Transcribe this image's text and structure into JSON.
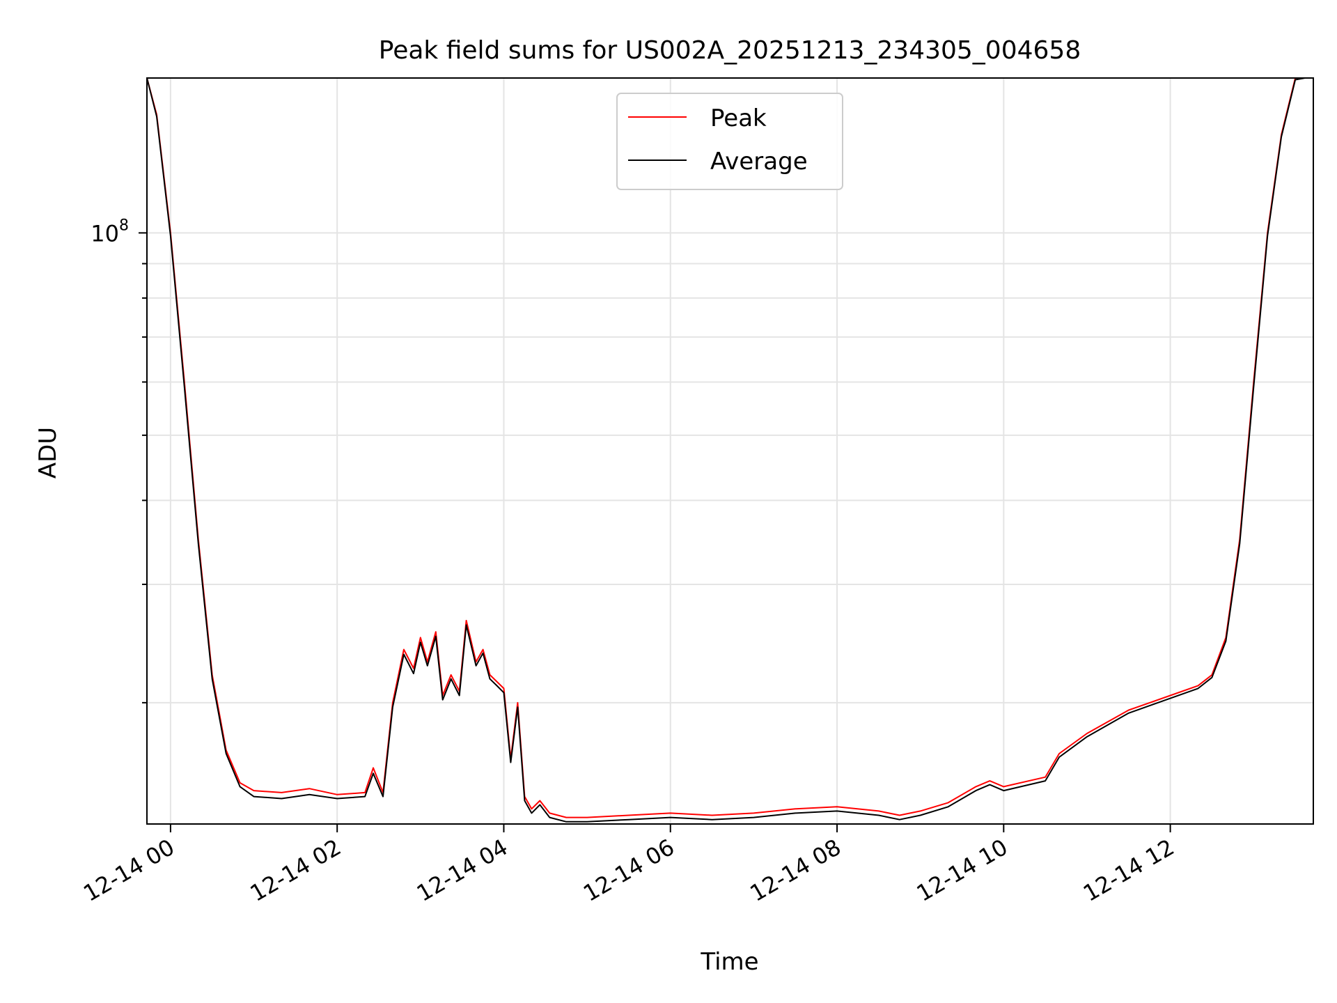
{
  "chart_data": {
    "type": "line",
    "title": "Peak field sums for US002A_20251213_234305_004658",
    "xlabel": "Time",
    "ylabel": "ADU",
    "yscale": "log",
    "y_major_tick_label": {
      "base": "10",
      "exponent": "8"
    },
    "x_tick_labels": [
      "12-14 00",
      "12-14 02",
      "12-14 04",
      "12-14 06",
      "12-14 08",
      "12-14 10",
      "12-14 12"
    ],
    "x_ticks": [
      "2025-12-14 00:00",
      "2025-12-14 02:00",
      "2025-12-14 04:00",
      "2025-12-14 06:00",
      "2025-12-14 08:00",
      "2025-12-14 10:00",
      "2025-12-14 12:00"
    ],
    "xlim": [
      "2025-12-13 23:43",
      "2025-12-14 13:43"
    ],
    "ylim": [
      13200000,
      170000000
    ],
    "grid": true,
    "legend": "upper center",
    "series": [
      {
        "name": "Peak",
        "color": "#ff0000",
        "x": [
          "2025-12-13 23:43",
          "2025-12-13 23:50",
          "2025-12-14 00:00",
          "2025-12-14 00:10",
          "2025-12-14 00:20",
          "2025-12-14 00:30",
          "2025-12-14 00:40",
          "2025-12-14 00:50",
          "2025-12-14 01:00",
          "2025-12-14 01:20",
          "2025-12-14 01:40",
          "2025-12-14 02:00",
          "2025-12-14 02:20",
          "2025-12-14 02:26",
          "2025-12-14 02:33",
          "2025-12-14 02:40",
          "2025-12-14 02:48",
          "2025-12-14 02:55",
          "2025-12-14 03:00",
          "2025-12-14 03:05",
          "2025-12-14 03:11",
          "2025-12-14 03:16",
          "2025-12-14 03:22",
          "2025-12-14 03:28",
          "2025-12-14 03:33",
          "2025-12-14 03:40",
          "2025-12-14 03:45",
          "2025-12-14 03:50",
          "2025-12-14 03:55",
          "2025-12-14 04:00",
          "2025-12-14 04:05",
          "2025-12-14 04:10",
          "2025-12-14 04:15",
          "2025-12-14 04:20",
          "2025-12-14 04:26",
          "2025-12-14 04:33",
          "2025-12-14 04:45",
          "2025-12-14 05:00",
          "2025-12-14 05:30",
          "2025-12-14 06:00",
          "2025-12-14 06:30",
          "2025-12-14 07:00",
          "2025-12-14 07:30",
          "2025-12-14 08:00",
          "2025-12-14 08:30",
          "2025-12-14 08:45",
          "2025-12-14 09:00",
          "2025-12-14 09:20",
          "2025-12-14 09:40",
          "2025-12-14 09:50",
          "2025-12-14 10:00",
          "2025-12-14 10:30",
          "2025-12-14 10:40",
          "2025-12-14 11:00",
          "2025-12-14 11:30",
          "2025-12-14 12:00",
          "2025-12-14 12:20",
          "2025-12-14 12:30",
          "2025-12-14 12:40",
          "2025-12-14 12:50",
          "2025-12-14 13:00",
          "2025-12-14 13:10",
          "2025-12-14 13:20",
          "2025-12-14 13:30",
          "2025-12-14 13:37"
        ],
        "values": [
          170000000,
          150000000,
          100000000,
          60000000,
          35000000,
          22000000,
          17000000,
          15200000,
          14800000,
          14700000,
          14900000,
          14600000,
          14700000,
          16000000,
          14700000,
          20000000,
          24000000,
          22500000,
          25000000,
          23000000,
          25500000,
          20500000,
          22000000,
          20800000,
          26500000,
          23000000,
          24000000,
          22000000,
          21500000,
          21000000,
          16500000,
          20000000,
          14500000,
          13900000,
          14300000,
          13700000,
          13500000,
          13500000,
          13600000,
          13700000,
          13600000,
          13700000,
          13900000,
          14000000,
          13800000,
          13600000,
          13800000,
          14200000,
          15000000,
          15300000,
          15000000,
          15500000,
          16800000,
          18000000,
          19500000,
          20500000,
          21200000,
          22000000,
          25000000,
          35000000,
          60000000,
          100000000,
          140000000,
          170000000,
          170000000
        ]
      },
      {
        "name": "Average",
        "color": "#000000",
        "x": [
          "2025-12-13 23:43",
          "2025-12-13 23:50",
          "2025-12-14 00:00",
          "2025-12-14 00:10",
          "2025-12-14 00:20",
          "2025-12-14 00:30",
          "2025-12-14 00:40",
          "2025-12-14 00:50",
          "2025-12-14 01:00",
          "2025-12-14 01:20",
          "2025-12-14 01:40",
          "2025-12-14 02:00",
          "2025-12-14 02:20",
          "2025-12-14 02:26",
          "2025-12-14 02:33",
          "2025-12-14 02:40",
          "2025-12-14 02:48",
          "2025-12-14 02:55",
          "2025-12-14 03:00",
          "2025-12-14 03:05",
          "2025-12-14 03:11",
          "2025-12-14 03:16",
          "2025-12-14 03:22",
          "2025-12-14 03:28",
          "2025-12-14 03:33",
          "2025-12-14 03:40",
          "2025-12-14 03:45",
          "2025-12-14 03:50",
          "2025-12-14 03:55",
          "2025-12-14 04:00",
          "2025-12-14 04:05",
          "2025-12-14 04:10",
          "2025-12-14 04:15",
          "2025-12-14 04:20",
          "2025-12-14 04:26",
          "2025-12-14 04:33",
          "2025-12-14 04:45",
          "2025-12-14 05:00",
          "2025-12-14 05:30",
          "2025-12-14 06:00",
          "2025-12-14 06:30",
          "2025-12-14 07:00",
          "2025-12-14 07:30",
          "2025-12-14 08:00",
          "2025-12-14 08:30",
          "2025-12-14 08:45",
          "2025-12-14 09:00",
          "2025-12-14 09:20",
          "2025-12-14 09:40",
          "2025-12-14 09:50",
          "2025-12-14 10:00",
          "2025-12-14 10:30",
          "2025-12-14 10:40",
          "2025-12-14 11:00",
          "2025-12-14 11:30",
          "2025-12-14 12:00",
          "2025-12-14 12:20",
          "2025-12-14 12:30",
          "2025-12-14 12:40",
          "2025-12-14 12:50",
          "2025-12-14 13:00",
          "2025-12-14 13:10",
          "2025-12-14 13:20",
          "2025-12-14 13:30",
          "2025-12-14 13:37"
        ],
        "values": [
          170000000,
          149000000,
          99000000,
          59000000,
          34500000,
          21700000,
          16800000,
          15000000,
          14500000,
          14400000,
          14600000,
          14400000,
          14500000,
          15700000,
          14500000,
          19700000,
          23600000,
          22100000,
          24600000,
          22700000,
          25100000,
          20200000,
          21700000,
          20500000,
          26100000,
          22700000,
          23700000,
          21700000,
          21200000,
          20700000,
          16300000,
          19700000,
          14300000,
          13700000,
          14100000,
          13500000,
          13300000,
          13300000,
          13400000,
          13500000,
          13400000,
          13500000,
          13700000,
          13800000,
          13600000,
          13400000,
          13600000,
          14000000,
          14800000,
          15100000,
          14800000,
          15300000,
          16600000,
          17800000,
          19300000,
          20300000,
          21000000,
          21800000,
          24700000,
          34500000,
          59000000,
          99000000,
          139000000,
          169000000,
          170000000
        ]
      }
    ]
  }
}
